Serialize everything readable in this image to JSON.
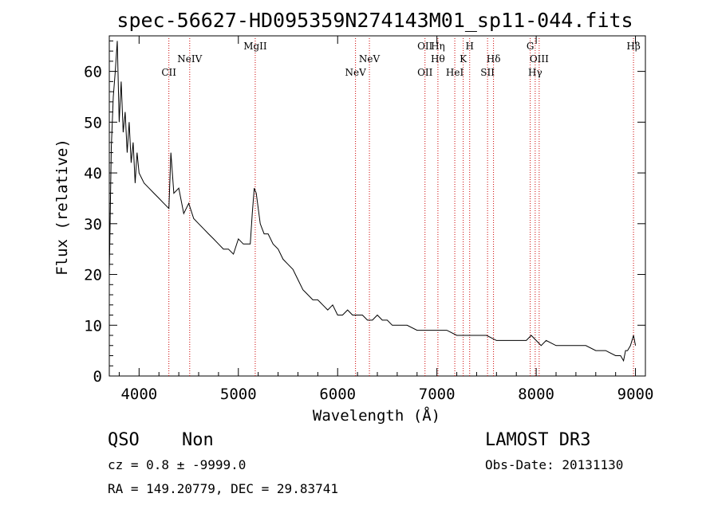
{
  "chart_data": {
    "type": "line",
    "title": "spec-56627-HD095359N274143M01_sp11-044.fits",
    "xlabel": "Wavelength (Å)",
    "ylabel": "Flux (relative)",
    "xlim": [
      3700,
      9100
    ],
    "ylim": [
      0,
      67
    ],
    "xticks": [
      4000,
      5000,
      6000,
      7000,
      8000,
      9000
    ],
    "yticks": [
      0,
      10,
      20,
      30,
      40,
      50,
      60
    ],
    "x": [
      3700,
      3720,
      3740,
      3760,
      3780,
      3800,
      3820,
      3840,
      3860,
      3880,
      3900,
      3920,
      3940,
      3960,
      3980,
      4000,
      4050,
      4100,
      4150,
      4200,
      4250,
      4300,
      4320,
      4350,
      4400,
      4450,
      4500,
      4550,
      4600,
      4650,
      4700,
      4750,
      4800,
      4850,
      4900,
      4950,
      5000,
      5050,
      5100,
      5120,
      5140,
      5160,
      5180,
      5200,
      5220,
      5240,
      5260,
      5300,
      5350,
      5400,
      5450,
      5500,
      5550,
      5600,
      5650,
      5700,
      5750,
      5800,
      5850,
      5900,
      5950,
      6000,
      6050,
      6100,
      6150,
      6200,
      6250,
      6300,
      6350,
      6400,
      6450,
      6500,
      6550,
      6600,
      6700,
      6800,
      6900,
      7000,
      7100,
      7200,
      7300,
      7400,
      7500,
      7600,
      7700,
      7800,
      7900,
      7950,
      8000,
      8050,
      8100,
      8200,
      8300,
      8400,
      8500,
      8600,
      8700,
      8800,
      8850,
      8880,
      8900,
      8920,
      8950,
      8980,
      9000
    ],
    "y": [
      20,
      45,
      55,
      60,
      66,
      50,
      58,
      48,
      52,
      44,
      50,
      42,
      46,
      38,
      44,
      40,
      38,
      37,
      36,
      35,
      34,
      33,
      44,
      36,
      37,
      32,
      34,
      31,
      30,
      29,
      28,
      27,
      26,
      25,
      25,
      24,
      27,
      26,
      26,
      26,
      32,
      37,
      36,
      33,
      30,
      29,
      28,
      28,
      26,
      25,
      23,
      22,
      21,
      19,
      17,
      16,
      15,
      15,
      14,
      13,
      14,
      12,
      12,
      13,
      12,
      12,
      12,
      11,
      11,
      12,
      11,
      11,
      10,
      10,
      10,
      9,
      9,
      9,
      9,
      8,
      8,
      8,
      8,
      7,
      7,
      7,
      7,
      8,
      7,
      6,
      7,
      6,
      6,
      6,
      6,
      5,
      5,
      4,
      4,
      3,
      5,
      5,
      6,
      8,
      6
    ],
    "line_markers": [
      {
        "label": "CII",
        "wavelength": 4300,
        "row": 3
      },
      {
        "label": "NeIV",
        "wavelength": 4510,
        "row": 2
      },
      {
        "label": "MgII",
        "wavelength": 5170,
        "row": 1
      },
      {
        "label": "NeV",
        "wavelength": 6180,
        "row": 3
      },
      {
        "label": "NeV",
        "wavelength": 6320,
        "row": 2
      },
      {
        "label": "OII",
        "wavelength": 6880,
        "row": 1
      },
      {
        "label": "OII",
        "wavelength": 6880,
        "row": 3
      },
      {
        "label": "Hη",
        "wavelength": 7010,
        "row": 1
      },
      {
        "label": "Hθ",
        "wavelength": 7010,
        "row": 2
      },
      {
        "label": "HeI",
        "wavelength": 7180,
        "row": 3
      },
      {
        "label": "K",
        "wavelength": 7265,
        "row": 2
      },
      {
        "label": "H",
        "wavelength": 7330,
        "row": 1
      },
      {
        "label": "Hδ",
        "wavelength": 7570,
        "row": 2
      },
      {
        "label": "SII",
        "wavelength": 7510,
        "row": 3
      },
      {
        "label": "G",
        "wavelength": 7940,
        "row": 1
      },
      {
        "label": "OIII",
        "wavelength": 8030,
        "row": 2
      },
      {
        "label": "Hγ",
        "wavelength": 7990,
        "row": 3
      },
      {
        "label": "Hβ",
        "wavelength": 8980,
        "row": 1
      }
    ],
    "grid": false,
    "line_color": "#000000",
    "marker_color": "#cc0000"
  },
  "info": {
    "class": "QSO",
    "subclass": "Non",
    "survey": "LAMOST DR3",
    "cz": "cz = 0.8 ± -9999.0",
    "obs_date": "Obs-Date: 20131130",
    "radec": "RA = 149.20779, DEC =  29.83741"
  }
}
